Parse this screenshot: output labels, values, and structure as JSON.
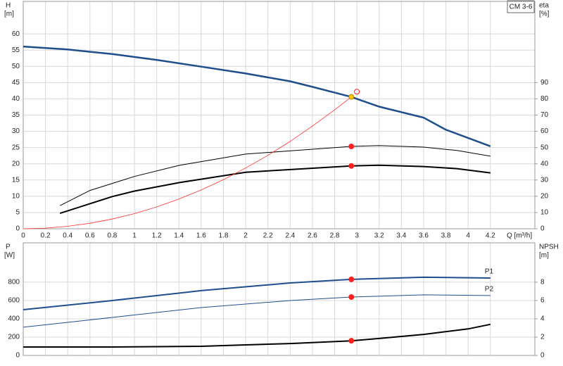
{
  "chart_data": [
    {
      "type": "line",
      "title": "CM 3-6",
      "y_label": "H",
      "y_unit": "[m]",
      "y2_label": "eta",
      "y2_unit": "[%]",
      "x_label": "Q [m³/h]",
      "xlim": [
        0,
        4.6
      ],
      "xticks": [
        0,
        0.2,
        0.4,
        0.6,
        0.8,
        1.0,
        1.2,
        1.4,
        1.6,
        1.8,
        2.0,
        2.2,
        2.4,
        2.6,
        2.8,
        3.0,
        3.2,
        3.4,
        3.6,
        3.8,
        4.0,
        4.2
      ],
      "ylim": [
        0,
        70
      ],
      "yticks": [
        0,
        5,
        10,
        15,
        20,
        25,
        30,
        35,
        40,
        45,
        50,
        55,
        60
      ],
      "y2lim": [
        0,
        140
      ],
      "y2ticks": [
        0,
        10,
        20,
        30,
        40,
        50,
        60,
        70,
        80,
        90
      ],
      "grid": true,
      "series": [
        {
          "color": "#1f4e8c",
          "width": 2.5,
          "x": [
            0,
            0.4,
            0.8,
            1.2,
            1.6,
            2.0,
            2.4,
            2.6,
            2.95,
            3.2,
            3.6,
            3.8,
            4.2
          ],
          "values": [
            56.1,
            55.2,
            53.8,
            52.0,
            49.9,
            47.8,
            45.4,
            43.7,
            40.6,
            37.6,
            34.2,
            30.5,
            25.4
          ]
        },
        {
          "color": "#000000",
          "width": 1,
          "axis": "y2",
          "x": [
            0.33,
            0.6,
            1.0,
            1.4,
            2.0,
            2.95,
            3.2,
            3.6,
            3.9,
            4.2
          ],
          "values": [
            14.2,
            23.6,
            32.2,
            39.0,
            46.0,
            50.7,
            51.2,
            50.3,
            48.2,
            44.7
          ]
        },
        {
          "color": "#000000",
          "width": 2,
          "axis": "y2",
          "x": [
            0.33,
            0.8,
            1.0,
            1.4,
            2.0,
            2.95,
            3.2,
            3.6,
            3.9,
            4.2
          ],
          "values": [
            9.5,
            19.8,
            23.2,
            28.4,
            34.8,
            38.7,
            39.1,
            38.3,
            37.0,
            34.4
          ]
        },
        {
          "color": "#ff3030",
          "width": 0.8,
          "x": [
            0,
            0.2,
            0.4,
            0.6,
            0.8,
            1.0,
            1.2,
            1.4,
            1.6,
            1.8,
            2.0,
            2.2,
            2.4,
            2.6,
            2.8,
            2.95
          ],
          "values": [
            0,
            0.19,
            0.75,
            1.68,
            2.99,
            4.67,
            6.72,
            9.15,
            11.95,
            15.1,
            18.7,
            22.6,
            26.9,
            31.6,
            36.6,
            40.6
          ]
        }
      ],
      "markers": [
        {
          "x": 2.95,
          "y": 40.6,
          "color": "#ffc800"
        },
        {
          "x": 2.95,
          "y": 50.7,
          "axis": "y2",
          "color": "#ff2020"
        },
        {
          "x": 2.95,
          "y": 38.7,
          "axis": "y2",
          "color": "#ff2020"
        },
        {
          "x": 3.0,
          "y": 42.2,
          "color": "#ff2020",
          "open": true
        }
      ]
    },
    {
      "type": "line",
      "y_label": "P",
      "y_unit": "[W]",
      "y2_label": "NPSH",
      "y2_unit": "[m]",
      "xlim": [
        0,
        4.6
      ],
      "xticks": [
        0,
        0.2,
        0.4,
        0.6,
        0.8,
        1.0,
        1.2,
        1.4,
        1.6,
        1.8,
        2.0,
        2.2,
        2.4,
        2.6,
        2.8,
        3.0,
        3.2,
        3.4,
        3.6,
        3.8,
        4.0,
        4.2
      ],
      "ylim": [
        0,
        1230
      ],
      "yticks": [
        0,
        200,
        400,
        600,
        800
      ],
      "y2lim": [
        0,
        12.3
      ],
      "y2ticks": [
        0,
        2,
        4,
        6,
        8
      ],
      "grid": true,
      "series": [
        {
          "name": "P1",
          "color": "#1f4e8c",
          "width": 2,
          "x": [
            0,
            0.8,
            1.6,
            2.4,
            2.95,
            3.6,
            4.2
          ],
          "values": [
            500,
            600,
            708,
            792,
            831,
            854,
            846
          ]
        },
        {
          "name": "P2",
          "color": "#1f4e8c",
          "width": 1,
          "x": [
            0,
            0.8,
            1.6,
            2.4,
            2.95,
            3.6,
            4.2
          ],
          "values": [
            308,
            415,
            523,
            600,
            638,
            662,
            654
          ]
        },
        {
          "color": "#000000",
          "width": 2,
          "axis": "y2",
          "x": [
            0,
            0.8,
            1.6,
            2.0,
            2.4,
            2.95,
            3.2,
            3.6,
            4.0,
            4.2
          ],
          "values": [
            0.92,
            0.92,
            1.0,
            1.15,
            1.3,
            1.6,
            1.85,
            2.3,
            2.9,
            3.4
          ]
        }
      ],
      "markers": [
        {
          "x": 2.95,
          "y": 831,
          "color": "#ff2020"
        },
        {
          "x": 2.95,
          "y": 638,
          "color": "#ff2020"
        },
        {
          "x": 2.95,
          "y": 1.6,
          "axis": "y2",
          "color": "#ff2020"
        }
      ]
    }
  ]
}
